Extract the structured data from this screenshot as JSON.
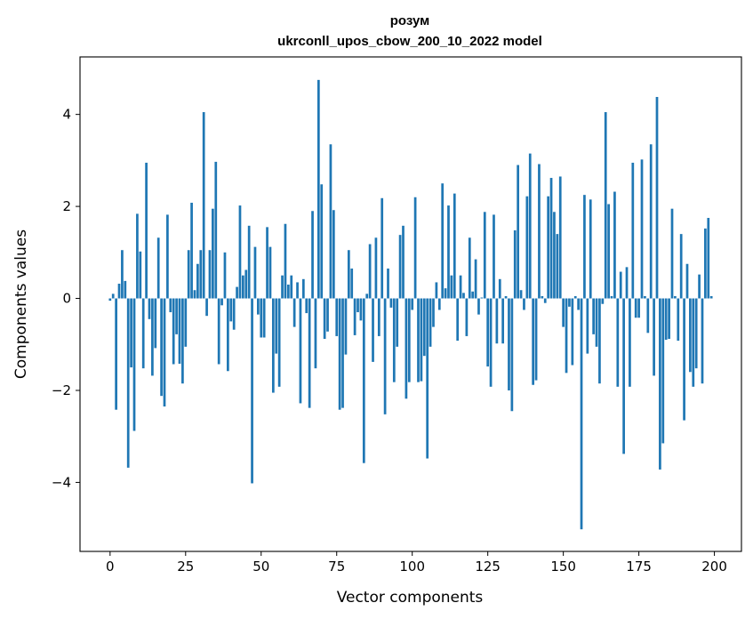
{
  "chart_data": {
    "type": "bar",
    "title_line1": "розум",
    "title_line2": "ukrconll_upos_cbow_200_10_2022 model",
    "xlabel": "Vector components",
    "ylabel": "Components values",
    "xlim": [
      -9.95,
      208.95
    ],
    "ylim": [
      -5.5,
      5.25
    ],
    "xticks": [
      0,
      25,
      50,
      75,
      100,
      125,
      150,
      175,
      200
    ],
    "xtick_labels": [
      "0",
      "25",
      "50",
      "75",
      "100",
      "125",
      "150",
      "175",
      "200"
    ],
    "yticks": [
      -4,
      -2,
      0,
      2,
      4
    ],
    "ytick_labels": [
      "−4",
      "−2",
      "0",
      "2",
      "4"
    ],
    "bar_color": "#1f77b4",
    "bar_width": 0.8,
    "grid": false,
    "x": [
      0,
      1,
      2,
      3,
      4,
      5,
      6,
      7,
      8,
      9,
      10,
      11,
      12,
      13,
      14,
      15,
      16,
      17,
      18,
      19,
      20,
      21,
      22,
      23,
      24,
      25,
      26,
      27,
      28,
      29,
      30,
      31,
      32,
      33,
      34,
      35,
      36,
      37,
      38,
      39,
      40,
      41,
      42,
      43,
      44,
      45,
      46,
      47,
      48,
      49,
      50,
      51,
      52,
      53,
      54,
      55,
      56,
      57,
      58,
      59,
      60,
      61,
      62,
      63,
      64,
      65,
      66,
      67,
      68,
      69,
      70,
      71,
      72,
      73,
      74,
      75,
      76,
      77,
      78,
      79,
      80,
      81,
      82,
      83,
      84,
      85,
      86,
      87,
      88,
      89,
      90,
      91,
      92,
      93,
      94,
      95,
      96,
      97,
      98,
      99,
      100,
      101,
      102,
      103,
      104,
      105,
      106,
      107,
      108,
      109,
      110,
      111,
      112,
      113,
      114,
      115,
      116,
      117,
      118,
      119,
      120,
      121,
      122,
      123,
      124,
      125,
      126,
      127,
      128,
      129,
      130,
      131,
      132,
      133,
      134,
      135,
      136,
      137,
      138,
      139,
      140,
      141,
      142,
      143,
      144,
      145,
      146,
      147,
      148,
      149,
      150,
      151,
      152,
      153,
      154,
      155,
      156,
      157,
      158,
      159,
      160,
      161,
      162,
      163,
      164,
      165,
      166,
      167,
      168,
      169,
      170,
      171,
      172,
      173,
      174,
      175,
      176,
      177,
      178,
      179,
      180,
      181,
      182,
      183,
      184,
      185,
      186,
      187,
      188,
      189,
      190,
      191,
      192,
      193,
      194,
      195,
      196,
      197,
      198,
      199
    ],
    "values": [
      -0.05,
      0.1,
      -2.42,
      0.32,
      1.05,
      0.38,
      -3.68,
      -1.5,
      -2.88,
      1.84,
      1.02,
      -1.52,
      2.95,
      -0.45,
      -1.68,
      -1.08,
      1.32,
      -2.12,
      -2.35,
      1.82,
      -0.3,
      -1.43,
      -0.78,
      -1.42,
      -1.85,
      -1.05,
      1.05,
      2.08,
      0.18,
      0.75,
      1.05,
      4.05,
      -0.38,
      1.05,
      1.95,
      2.97,
      -1.43,
      -0.15,
      1.0,
      -1.58,
      -0.5,
      -0.68,
      0.25,
      2.02,
      0.5,
      0.62,
      1.58,
      -4.02,
      1.12,
      -0.35,
      -0.85,
      -0.85,
      1.55,
      1.12,
      -2.05,
      -1.2,
      -1.92,
      0.5,
      1.62,
      0.3,
      0.5,
      -0.62,
      0.35,
      -2.28,
      0.42,
      -0.32,
      -2.38,
      1.9,
      -1.52,
      4.75,
      2.48,
      -0.88,
      -0.72,
      3.35,
      1.92,
      -0.82,
      -2.42,
      -2.38,
      -1.22,
      1.05,
      0.65,
      -0.8,
      -0.3,
      -0.48,
      -3.58,
      0.1,
      1.18,
      -1.38,
      1.32,
      -0.82,
      2.18,
      -2.52,
      0.65,
      -0.2,
      -1.82,
      -1.05,
      1.38,
      1.58,
      -2.18,
      -1.82,
      -0.25,
      2.2,
      -1.82,
      -1.8,
      -1.25,
      -3.48,
      -1.05,
      -0.62,
      0.35,
      -0.25,
      2.5,
      0.22,
      2.02,
      0.5,
      2.28,
      -0.92,
      0.5,
      0.12,
      -0.82,
      1.32,
      0.15,
      0.85,
      -0.35,
      0.02,
      1.88,
      -1.48,
      -1.92,
      1.82,
      -0.98,
      0.42,
      -0.98,
      0.05,
      -2.0,
      -2.45,
      1.48,
      2.9,
      0.18,
      -0.25,
      2.22,
      3.15,
      -1.88,
      -1.78,
      2.92,
      0.05,
      -0.1,
      2.22,
      2.62,
      1.88,
      1.4,
      2.65,
      -0.62,
      -1.62,
      -0.18,
      -1.45,
      0.05,
      -0.25,
      -5.02,
      2.25,
      -1.2,
      2.15,
      -0.78,
      -1.05,
      -1.85,
      -0.12,
      4.05,
      2.05,
      0.05,
      2.32,
      -1.92,
      0.58,
      -3.38,
      0.68,
      -1.92,
      2.95,
      -0.42,
      -0.42,
      3.02,
      0.05,
      -0.75,
      3.35,
      -1.68,
      4.38,
      -3.72,
      -3.15,
      -0.9,
      -0.88,
      1.95,
      0.05,
      -0.92,
      1.4,
      -2.65,
      0.75,
      -1.6,
      -1.92,
      -1.52,
      0.52,
      -1.85,
      1.52,
      1.75,
      0.05
    ]
  }
}
